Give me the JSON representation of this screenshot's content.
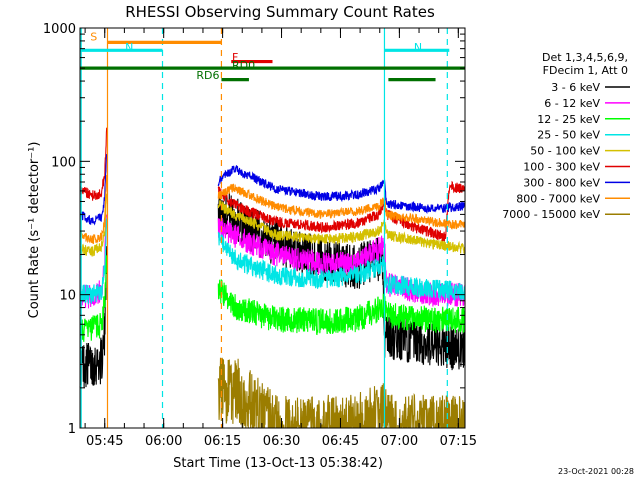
{
  "chart_data": {
    "type": "line",
    "title": "RHESSI Observing Summary Count Rates",
    "xlabel": "Start Time (13-Oct-13 05:38:42)",
    "ylabel": "Count Rate (s⁻¹ detector⁻¹)",
    "yscale": "log",
    "ylim": [
      1,
      1000
    ],
    "xlim_minutes": [
      0,
      98
    ],
    "x_ticks": [
      {
        "label": "05:45",
        "minute": 6.3
      },
      {
        "label": "06:00",
        "minute": 21.3
      },
      {
        "label": "06:15",
        "minute": 36.3
      },
      {
        "label": "06:30",
        "minute": 51.3
      },
      {
        "label": "06:45",
        "minute": 66.3
      },
      {
        "label": "07:00",
        "minute": 81.3
      },
      {
        "label": "07:15",
        "minute": 96.3
      }
    ],
    "y_ticks": [
      {
        "label": "1",
        "value": 1
      },
      {
        "label": "10",
        "value": 10
      },
      {
        "label": "100",
        "value": 100
      },
      {
        "label": "1000",
        "value": 1000
      }
    ],
    "legend_header": [
      "Det 1,3,4,5,6,9,",
      "FDecim 1, Att 0"
    ],
    "legend_position": "right",
    "timestamp": "23-Oct-2021 00:28",
    "segments": [
      [
        0,
        6.8
      ],
      [
        35.2,
        77.5
      ],
      [
        77.5,
        98
      ]
    ],
    "vlines": [
      {
        "name": "night-start",
        "minute": 21.0,
        "color": "#00e5e5",
        "style": "dashed"
      },
      {
        "name": "saa-end",
        "minute": 36.0,
        "color": "#ff8c00",
        "style": "dashed"
      },
      {
        "name": "night-end",
        "minute": 77.5,
        "color": "#00e5e5",
        "style": "solid"
      },
      {
        "name": "night-start-2",
        "minute": 93.5,
        "color": "#00e5e5",
        "style": "dashed"
      },
      {
        "name": "left-edge",
        "minute": 0.3,
        "color": "#00e5e5",
        "style": "solid"
      },
      {
        "name": "saa-start",
        "minute": 7.0,
        "color": "#ff8c00",
        "style": "solid"
      }
    ],
    "flag_bars": [
      {
        "label": "S",
        "color": "#ff8c00",
        "value": 780,
        "start": 7.0,
        "end": 36.0
      },
      {
        "label": "N",
        "color": "#00e5e5",
        "value": 680,
        "start": 0.0,
        "end": 21.0
      },
      {
        "label": "N",
        "color": "#00e5e5",
        "value": 680,
        "start": 77.5,
        "end": 94.0
      },
      {
        "label": "F",
        "color": "#e00000",
        "value": 560,
        "start": 38.5,
        "end": 49.0
      },
      {
        "label": "RD0",
        "color": "#007000",
        "value": 500,
        "start": 0.0,
        "end": 98.0
      },
      {
        "label": "RD6",
        "color": "#007000",
        "value": 410,
        "start": 36.0,
        "end": 43.0
      },
      {
        "label": "",
        "color": "#007000",
        "value": 410,
        "start": 78.5,
        "end": 90.5
      }
    ],
    "series": [
      {
        "name": "3 - 6 keV",
        "color": "#000000",
        "noise": 0.35,
        "pts": [
          [
            0,
            3
          ],
          [
            3,
            3
          ],
          [
            5.5,
            3.2
          ],
          [
            6.3,
            5
          ],
          [
            6.8,
            28
          ],
          [
            35.2,
            45
          ],
          [
            40,
            36
          ],
          [
            50,
            24
          ],
          [
            62,
            18
          ],
          [
            70,
            16
          ],
          [
            77,
            19
          ],
          [
            77.5,
            5
          ],
          [
            85,
            4.5
          ],
          [
            93,
            4
          ],
          [
            98,
            4
          ]
        ]
      },
      {
        "name": "6 - 12 keV",
        "color": "#ff00ff",
        "noise": 0.18,
        "pts": [
          [
            0,
            10
          ],
          [
            3,
            9.5
          ],
          [
            5.5,
            11
          ],
          [
            6.3,
            18
          ],
          [
            6.8,
            40
          ],
          [
            35.2,
            32
          ],
          [
            40,
            27
          ],
          [
            50,
            20
          ],
          [
            62,
            17
          ],
          [
            70,
            17
          ],
          [
            76,
            22
          ],
          [
            77.5,
            24
          ],
          [
            78,
            12
          ],
          [
            90,
            10
          ],
          [
            98,
            10
          ]
        ]
      },
      {
        "name": "12 - 25 keV",
        "color": "#00ff00",
        "noise": 0.2,
        "pts": [
          [
            0,
            5.5
          ],
          [
            3,
            5.5
          ],
          [
            5.5,
            6
          ],
          [
            6.3,
            9
          ],
          [
            6.8,
            20
          ],
          [
            35.2,
            11
          ],
          [
            40,
            8
          ],
          [
            50,
            6.5
          ],
          [
            62,
            6.3
          ],
          [
            70,
            6.5
          ],
          [
            77,
            8
          ],
          [
            77.5,
            8.5
          ],
          [
            78,
            7
          ],
          [
            90,
            6.5
          ],
          [
            98,
            6.5
          ]
        ]
      },
      {
        "name": "25 - 50 keV",
        "color": "#00e5e5",
        "noise": 0.15,
        "pts": [
          [
            0,
            10
          ],
          [
            3,
            10
          ],
          [
            5.5,
            10.5
          ],
          [
            6.3,
            16
          ],
          [
            6.8,
            35
          ],
          [
            35.2,
            26
          ],
          [
            40,
            18
          ],
          [
            50,
            14
          ],
          [
            62,
            13
          ],
          [
            70,
            14
          ],
          [
            76,
            16
          ],
          [
            77.5,
            18
          ],
          [
            78,
            12
          ],
          [
            90,
            11
          ],
          [
            98,
            10.5
          ]
        ]
      },
      {
        "name": "50 - 100 keV",
        "color": "#d4c000",
        "noise": 0.08,
        "pts": [
          [
            0,
            22
          ],
          [
            3,
            21
          ],
          [
            5.5,
            23
          ],
          [
            6.3,
            30
          ],
          [
            6.8,
            60
          ],
          [
            35.2,
            48
          ],
          [
            38,
            42
          ],
          [
            50,
            28
          ],
          [
            62,
            26
          ],
          [
            70,
            27
          ],
          [
            76,
            30
          ],
          [
            77.5,
            34
          ],
          [
            78,
            28
          ],
          [
            90,
            24
          ],
          [
            98,
            22
          ]
        ]
      },
      {
        "name": "100 - 300 keV",
        "color": "#e00000",
        "noise": 0.08,
        "pts": [
          [
            0,
            62
          ],
          [
            3,
            55
          ],
          [
            5.5,
            58
          ],
          [
            6.3,
            80
          ],
          [
            6.8,
            180
          ],
          [
            35.2,
            60
          ],
          [
            38,
            50
          ],
          [
            43,
            42
          ],
          [
            50,
            35
          ],
          [
            62,
            32
          ],
          [
            70,
            34
          ],
          [
            76,
            40
          ],
          [
            77.5,
            50
          ],
          [
            78,
            40
          ],
          [
            85,
            32
          ],
          [
            93,
            27
          ],
          [
            94,
            65
          ],
          [
            98,
            62
          ]
        ]
      },
      {
        "name": "300 - 800 keV",
        "color": "#0000e5",
        "noise": 0.07,
        "pts": [
          [
            0,
            40
          ],
          [
            3,
            36
          ],
          [
            5.5,
            38
          ],
          [
            6.3,
            55
          ],
          [
            6.8,
            120
          ],
          [
            35.2,
            70
          ],
          [
            39,
            88
          ],
          [
            43,
            78
          ],
          [
            50,
            62
          ],
          [
            62,
            54
          ],
          [
            70,
            56
          ],
          [
            76,
            62
          ],
          [
            77.5,
            70
          ],
          [
            78,
            48
          ],
          [
            90,
            44
          ],
          [
            98,
            46
          ]
        ]
      },
      {
        "name": "800 - 7000 keV",
        "color": "#ff8c00",
        "noise": 0.07,
        "pts": [
          [
            0,
            28
          ],
          [
            3,
            26
          ],
          [
            5.5,
            27
          ],
          [
            6.3,
            36
          ],
          [
            6.8,
            80
          ],
          [
            35.2,
            55
          ],
          [
            39,
            64
          ],
          [
            43,
            56
          ],
          [
            50,
            45
          ],
          [
            62,
            40
          ],
          [
            70,
            42
          ],
          [
            76,
            46
          ],
          [
            77.5,
            52
          ],
          [
            78,
            40
          ],
          [
            90,
            35
          ],
          [
            98,
            33
          ]
        ]
      },
      {
        "name": "7000 - 15000 keV",
        "color": "#9b7d00",
        "noise": 0.5,
        "pts": [
          [
            35.2,
            1.9
          ],
          [
            40,
            1.9
          ],
          [
            50,
            1
          ],
          [
            70,
            1
          ],
          [
            77.5,
            1.3
          ],
          [
            80,
            1
          ],
          [
            98,
            1
          ]
        ]
      }
    ]
  }
}
